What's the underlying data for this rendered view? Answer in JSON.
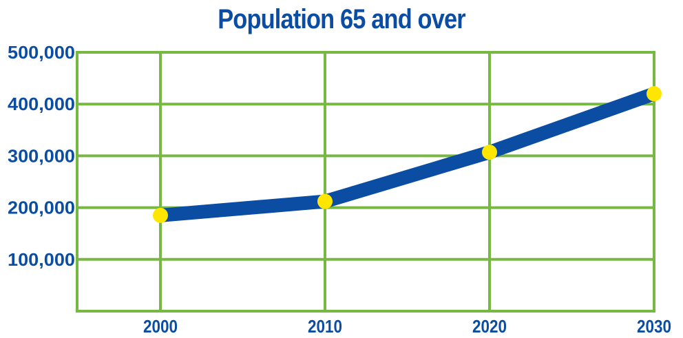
{
  "chart_data": {
    "type": "line",
    "title": "Population 65 and over",
    "xlabel": "",
    "ylabel": "",
    "x": [
      "2000",
      "2010",
      "2020",
      "2030"
    ],
    "series": [
      {
        "values": [
          185000,
          212000,
          307000,
          420000
        ]
      }
    ],
    "y_tick_labels": [
      "500,000",
      "400,000",
      "300,000",
      "200,000",
      "100,000"
    ],
    "y_tick_values": [
      500000,
      400000,
      300000,
      200000,
      100000
    ],
    "ylim": [
      0,
      500000
    ],
    "grid": true,
    "colors": {
      "line": "#0a4da2",
      "marker": "#ffe600",
      "grid": "#77b843",
      "text": "#0a4da2"
    }
  }
}
